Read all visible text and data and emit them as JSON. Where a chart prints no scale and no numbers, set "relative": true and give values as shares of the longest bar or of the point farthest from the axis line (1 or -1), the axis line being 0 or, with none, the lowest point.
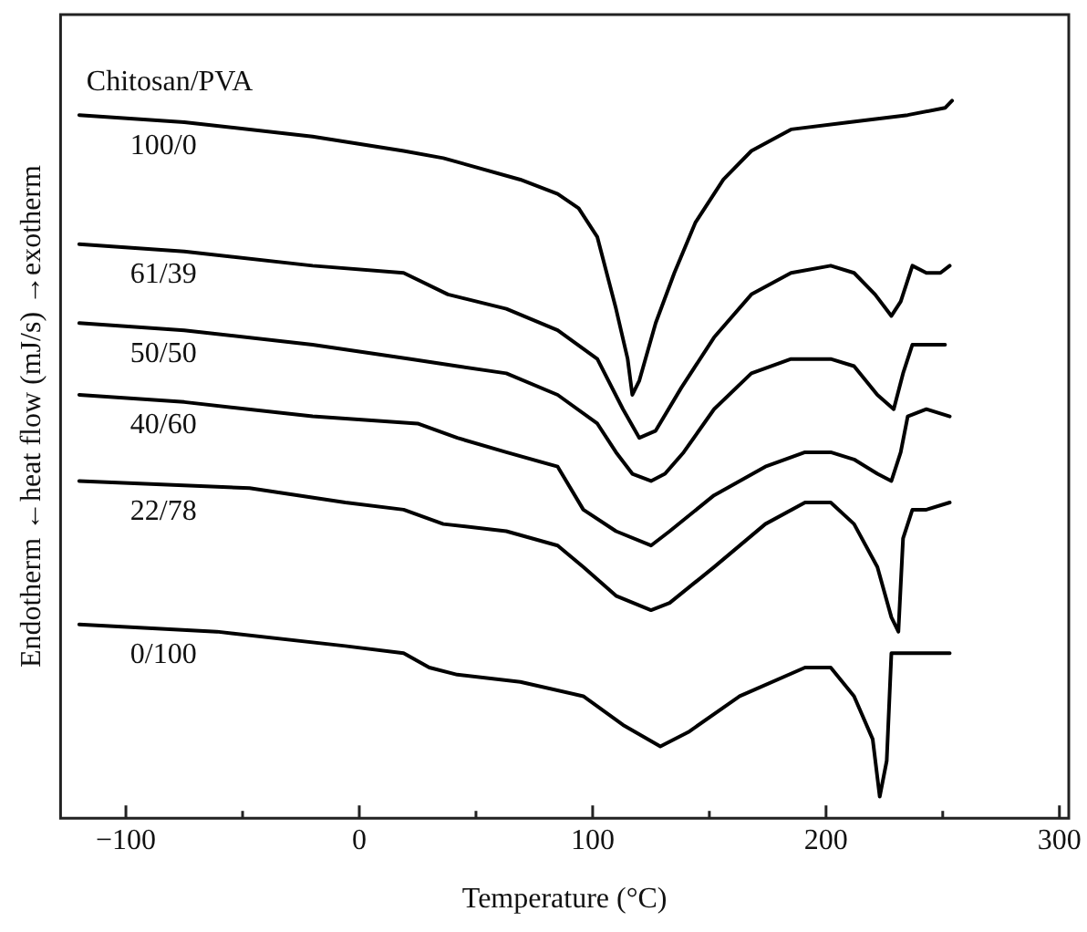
{
  "chart_data": {
    "type": "line",
    "relative": true,
    "xlabel": "Temperature (°C)",
    "ylabel": "Endotherm ←heat flow (mJ/s) →exotherm",
    "legend_title": "Chitosan/PVA",
    "legend": false,
    "marker": "none",
    "line_style": "solid",
    "grid": false,
    "xlim": [
      -128,
      304
    ],
    "xticks": [
      -100,
      {
        "value": -50,
        "label": null
      },
      0,
      {
        "value": 50,
        "label": null
      },
      100,
      {
        "value": 150,
        "label": null
      },
      200,
      {
        "value": 250,
        "label": null
      },
      300
    ],
    "series": [
      {
        "name": "100/0",
        "color": "#000000",
        "x": [
          -120,
          -75,
          -20,
          19,
          36,
          69,
          85,
          94,
          102,
          106,
          110,
          115,
          117,
          120,
          127,
          135,
          144,
          156,
          168,
          185,
          210,
          235,
          251,
          254
        ],
        "values": [
          0.98,
          0.97,
          0.95,
          0.93,
          0.92,
          0.89,
          0.87,
          0.85,
          0.81,
          0.76,
          0.71,
          0.64,
          0.59,
          0.61,
          0.69,
          0.76,
          0.83,
          0.89,
          0.93,
          0.96,
          0.97,
          0.98,
          0.99,
          1.0
        ]
      },
      {
        "name": "61/39",
        "color": "#000000",
        "x": [
          -120,
          -75,
          -20,
          19,
          38,
          63,
          85,
          102,
          113,
          120,
          127,
          138,
          152,
          168,
          185,
          202,
          212,
          221,
          228,
          232,
          237,
          243,
          249,
          253
        ],
        "values": [
          0.8,
          0.79,
          0.77,
          0.76,
          0.73,
          0.71,
          0.68,
          0.64,
          0.57,
          0.53,
          0.54,
          0.6,
          0.67,
          0.73,
          0.76,
          0.77,
          0.76,
          0.73,
          0.7,
          0.72,
          0.77,
          0.76,
          0.76,
          0.77
        ]
      },
      {
        "name": "50/50",
        "color": "#000000",
        "x": [
          -120,
          -75,
          -20,
          22,
          42,
          63,
          85,
          102,
          110,
          117,
          125,
          131,
          139,
          152,
          168,
          185,
          202,
          212,
          222,
          229,
          233,
          237,
          243,
          251
        ],
        "values": [
          0.69,
          0.68,
          0.66,
          0.64,
          0.63,
          0.62,
          0.59,
          0.55,
          0.51,
          0.48,
          0.47,
          0.48,
          0.51,
          0.57,
          0.62,
          0.64,
          0.64,
          0.63,
          0.59,
          0.57,
          0.62,
          0.66,
          0.66,
          0.66
        ]
      },
      {
        "name": "40/60",
        "color": "#000000",
        "x": [
          -120,
          -75,
          -20,
          25,
          42,
          63,
          85,
          96,
          110,
          125,
          133,
          152,
          174,
          191,
          202,
          212,
          222,
          228,
          232,
          235,
          243,
          253
        ],
        "values": [
          0.59,
          0.58,
          0.56,
          0.55,
          0.53,
          0.51,
          0.49,
          0.43,
          0.4,
          0.38,
          0.4,
          0.45,
          0.49,
          0.51,
          0.51,
          0.5,
          0.48,
          0.47,
          0.51,
          0.56,
          0.57,
          0.56
        ]
      },
      {
        "name": "22/78",
        "color": "#000000",
        "x": [
          -120,
          -47,
          -6,
          19,
          36,
          63,
          85,
          96,
          110,
          125,
          133,
          152,
          174,
          191,
          202,
          212,
          222,
          228,
          231,
          233,
          237,
          243,
          253
        ],
        "values": [
          0.47,
          0.46,
          0.44,
          0.43,
          0.41,
          0.4,
          0.38,
          0.35,
          0.31,
          0.29,
          0.3,
          0.35,
          0.41,
          0.44,
          0.44,
          0.41,
          0.35,
          0.28,
          0.26,
          0.39,
          0.43,
          0.43,
          0.44
        ]
      },
      {
        "name": "0/100",
        "color": "#000000",
        "x": [
          -120,
          -61,
          -6,
          19,
          30,
          42,
          69,
          96,
          113,
          129,
          141,
          163,
          191,
          202,
          212,
          220,
          223,
          226,
          228,
          235,
          253
        ],
        "values": [
          0.27,
          0.26,
          0.24,
          0.23,
          0.21,
          0.2,
          0.19,
          0.17,
          0.13,
          0.1,
          0.12,
          0.17,
          0.21,
          0.21,
          0.17,
          0.11,
          0.03,
          0.08,
          0.23,
          0.23,
          0.23
        ]
      }
    ]
  }
}
